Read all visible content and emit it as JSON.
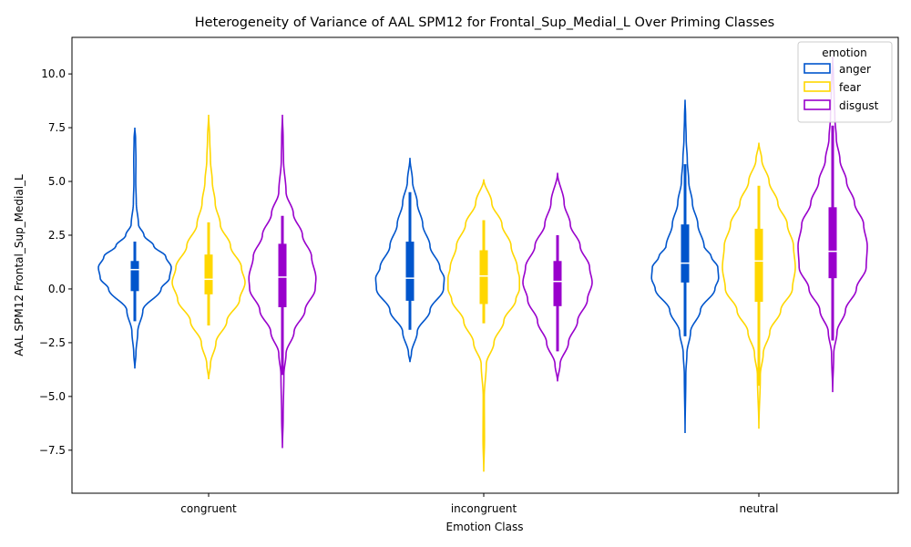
{
  "chart_data": {
    "type": "violin",
    "title": "Heterogeneity of Variance of AAL SPM12 for Frontal_Sup_Medial_L Over Priming Classes",
    "xlabel": "Emotion Class",
    "ylabel": "AAL SPM12 Frontal_Sup_Medial_L",
    "categories": [
      "congruent",
      "incongruent",
      "neutral"
    ],
    "ylim": [
      -9.5,
      11.7
    ],
    "yticks": [
      -7.5,
      -5.0,
      -2.5,
      0.0,
      2.5,
      5.0,
      7.5,
      10.0
    ],
    "ytick_labels": [
      "−7.5",
      "−5.0",
      "−2.5",
      "0.0",
      "2.5",
      "5.0",
      "7.5",
      "10.0"
    ],
    "grid": false,
    "legend": {
      "title": "emotion",
      "placement": "upper-right"
    },
    "series": [
      {
        "name": "anger",
        "color": "#0055cc",
        "violins": [
          {
            "min": -3.7,
            "max": 7.5,
            "q1": -0.1,
            "median": 0.9,
            "q3": 1.3,
            "whisker_low": -1.5,
            "whisker_high": 2.2,
            "profile": [
              [
                -3.7,
                0.0
              ],
              [
                -3.0,
                0.03
              ],
              [
                -2.0,
                0.08
              ],
              [
                -1.0,
                0.22
              ],
              [
                0.0,
                0.72
              ],
              [
                0.5,
                0.95
              ],
              [
                1.0,
                1.0
              ],
              [
                1.5,
                0.85
              ],
              [
                2.0,
                0.52
              ],
              [
                2.5,
                0.25
              ],
              [
                3.0,
                0.1
              ],
              [
                4.0,
                0.04
              ],
              [
                5.0,
                0.025
              ],
              [
                6.0,
                0.03
              ],
              [
                7.0,
                0.02
              ],
              [
                7.5,
                0.0
              ]
            ]
          },
          {
            "min": -3.4,
            "max": 6.1,
            "q1": -0.55,
            "median": 0.5,
            "q3": 2.2,
            "whisker_low": -1.9,
            "whisker_high": 4.5,
            "profile": [
              [
                -3.4,
                0.0
              ],
              [
                -3.0,
                0.04
              ],
              [
                -2.0,
                0.2
              ],
              [
                -1.0,
                0.55
              ],
              [
                0.0,
                0.92
              ],
              [
                0.5,
                0.94
              ],
              [
                1.0,
                0.82
              ],
              [
                2.0,
                0.55
              ],
              [
                3.0,
                0.35
              ],
              [
                4.0,
                0.2
              ],
              [
                5.0,
                0.07
              ],
              [
                6.1,
                0.0
              ]
            ]
          },
          {
            "min": -6.7,
            "max": 8.8,
            "q1": 0.3,
            "median": 1.2,
            "q3": 3.0,
            "whisker_low": -2.2,
            "whisker_high": 5.8,
            "profile": [
              [
                -6.7,
                0.0
              ],
              [
                -4.0,
                0.02
              ],
              [
                -3.0,
                0.05
              ],
              [
                -2.0,
                0.15
              ],
              [
                -1.0,
                0.42
              ],
              [
                0.0,
                0.82
              ],
              [
                0.5,
                0.92
              ],
              [
                1.0,
                0.9
              ],
              [
                1.5,
                0.72
              ],
              [
                2.0,
                0.52
              ],
              [
                3.0,
                0.35
              ],
              [
                4.0,
                0.2
              ],
              [
                5.0,
                0.1
              ],
              [
                6.0,
                0.06
              ],
              [
                7.0,
                0.03
              ],
              [
                8.0,
                0.015
              ],
              [
                8.8,
                0.0
              ]
            ]
          }
        ]
      },
      {
        "name": "fear",
        "color": "#ffd700",
        "violins": [
          {
            "min": -4.2,
            "max": 8.1,
            "q1": -0.25,
            "median": 0.45,
            "q3": 1.6,
            "whisker_low": -1.7,
            "whisker_high": 3.1,
            "profile": [
              [
                -4.2,
                0.0
              ],
              [
                -3.5,
                0.05
              ],
              [
                -2.5,
                0.2
              ],
              [
                -1.5,
                0.5
              ],
              [
                -0.5,
                0.85
              ],
              [
                0.3,
                1.0
              ],
              [
                1.0,
                0.9
              ],
              [
                2.0,
                0.6
              ],
              [
                3.0,
                0.32
              ],
              [
                4.0,
                0.18
              ],
              [
                5.0,
                0.1
              ],
              [
                6.0,
                0.05
              ],
              [
                7.0,
                0.03
              ],
              [
                8.1,
                0.0
              ]
            ]
          },
          {
            "min": -8.5,
            "max": 5.1,
            "q1": -0.7,
            "median": 0.6,
            "q3": 1.8,
            "whisker_low": -1.6,
            "whisker_high": 3.2,
            "profile": [
              [
                -8.5,
                0.0
              ],
              [
                -7.0,
                0.02
              ],
              [
                -5.0,
                0.015
              ],
              [
                -3.5,
                0.07
              ],
              [
                -2.5,
                0.28
              ],
              [
                -1.5,
                0.55
              ],
              [
                -0.5,
                0.88
              ],
              [
                0.0,
                0.98
              ],
              [
                0.5,
                0.98
              ],
              [
                1.0,
                0.92
              ],
              [
                2.0,
                0.75
              ],
              [
                3.0,
                0.5
              ],
              [
                4.0,
                0.22
              ],
              [
                5.1,
                0.0
              ]
            ]
          },
          {
            "min": -6.5,
            "max": 6.8,
            "q1": -0.6,
            "median": 1.3,
            "q3": 2.8,
            "whisker_low": -4.5,
            "whisker_high": 4.8,
            "profile": [
              [
                -6.5,
                0.0
              ],
              [
                -4.0,
                0.04
              ],
              [
                -3.0,
                0.12
              ],
              [
                -2.0,
                0.3
              ],
              [
                -1.0,
                0.6
              ],
              [
                0.0,
                0.92
              ],
              [
                1.0,
                1.0
              ],
              [
                2.0,
                0.95
              ],
              [
                3.0,
                0.78
              ],
              [
                4.0,
                0.52
              ],
              [
                5.0,
                0.28
              ],
              [
                6.0,
                0.08
              ],
              [
                6.8,
                0.0
              ]
            ]
          }
        ]
      },
      {
        "name": "disgust",
        "color": "#9900cc",
        "violins": [
          {
            "min": -7.4,
            "max": 8.1,
            "q1": -0.85,
            "median": 0.55,
            "q3": 2.1,
            "whisker_low": -4.0,
            "whisker_high": 3.4,
            "profile": [
              [
                -7.4,
                0.0
              ],
              [
                -6.0,
                0.02
              ],
              [
                -4.0,
                0.04
              ],
              [
                -3.0,
                0.1
              ],
              [
                -2.0,
                0.32
              ],
              [
                -1.0,
                0.62
              ],
              [
                0.0,
                0.9
              ],
              [
                0.5,
                0.92
              ],
              [
                1.5,
                0.8
              ],
              [
                2.5,
                0.55
              ],
              [
                3.5,
                0.3
              ],
              [
                4.5,
                0.1
              ],
              [
                6.0,
                0.03
              ],
              [
                7.0,
                0.02
              ],
              [
                8.1,
                0.0
              ]
            ]
          },
          {
            "min": -4.3,
            "max": 5.4,
            "q1": -0.8,
            "median": 0.35,
            "q3": 1.3,
            "whisker_low": -2.9,
            "whisker_high": 2.5,
            "profile": [
              [
                -4.3,
                0.0
              ],
              [
                -3.5,
                0.07
              ],
              [
                -2.5,
                0.3
              ],
              [
                -1.5,
                0.55
              ],
              [
                -0.5,
                0.82
              ],
              [
                0.3,
                0.95
              ],
              [
                1.0,
                0.88
              ],
              [
                2.0,
                0.62
              ],
              [
                3.0,
                0.35
              ],
              [
                4.0,
                0.18
              ],
              [
                5.4,
                0.0
              ]
            ]
          },
          {
            "min": -4.8,
            "max": 10.8,
            "q1": 0.5,
            "median": 1.75,
            "q3": 3.8,
            "whisker_low": -2.4,
            "whisker_high": 7.6,
            "profile": [
              [
                -4.8,
                0.0
              ],
              [
                -3.0,
                0.03
              ],
              [
                -2.0,
                0.12
              ],
              [
                -1.0,
                0.35
              ],
              [
                0.0,
                0.65
              ],
              [
                1.0,
                0.92
              ],
              [
                2.0,
                0.95
              ],
              [
                3.0,
                0.85
              ],
              [
                4.0,
                0.6
              ],
              [
                5.0,
                0.38
              ],
              [
                6.0,
                0.2
              ],
              [
                7.0,
                0.1
              ],
              [
                8.0,
                0.06
              ],
              [
                9.0,
                0.04
              ],
              [
                10.0,
                0.02
              ],
              [
                10.8,
                0.0
              ]
            ]
          }
        ]
      }
    ]
  }
}
